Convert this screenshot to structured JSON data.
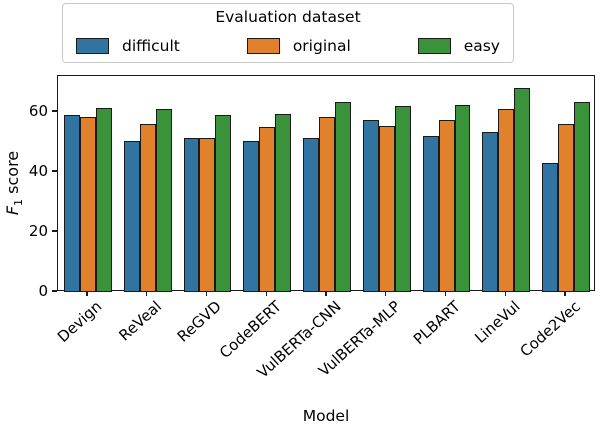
{
  "figure": {
    "xlabel": "Model",
    "ylabel": {
      "f": "F",
      "sub": "1",
      "rest": " score"
    }
  },
  "legend": {
    "title": "Evaluation dataset"
  },
  "chart_data": {
    "type": "bar",
    "title": "",
    "xlabel": "Model",
    "ylabel": "F1 score",
    "categories": [
      "Devign",
      "ReVeal",
      "ReGVD",
      "CodeBERT",
      "VulBERTa-CNN",
      "VulBERTa-MLP",
      "PLBART",
      "LineVul",
      "Code2Vec"
    ],
    "series": [
      {
        "name": "difficult",
        "color": "#3274a1",
        "values": [
          59,
          50.5,
          51.5,
          50.5,
          51.5,
          57.5,
          52,
          53.5,
          43
        ]
      },
      {
        "name": "original",
        "color": "#e1812c",
        "values": [
          58.5,
          56,
          51.5,
          55,
          58.5,
          55.5,
          57.5,
          61,
          56
        ]
      },
      {
        "name": "easy",
        "color": "#3a923a",
        "values": [
          61.5,
          61,
          59,
          59.5,
          63.5,
          62,
          62.5,
          68,
          63.5
        ]
      }
    ],
    "ylim": [
      0,
      72
    ],
    "yticks": [
      0,
      20,
      40,
      60
    ],
    "legend_title": "Evaluation dataset",
    "legend_position": "top",
    "grid": false,
    "bar_edge_color": "#1a1a1a",
    "bar_group_width_fraction": 0.8
  }
}
